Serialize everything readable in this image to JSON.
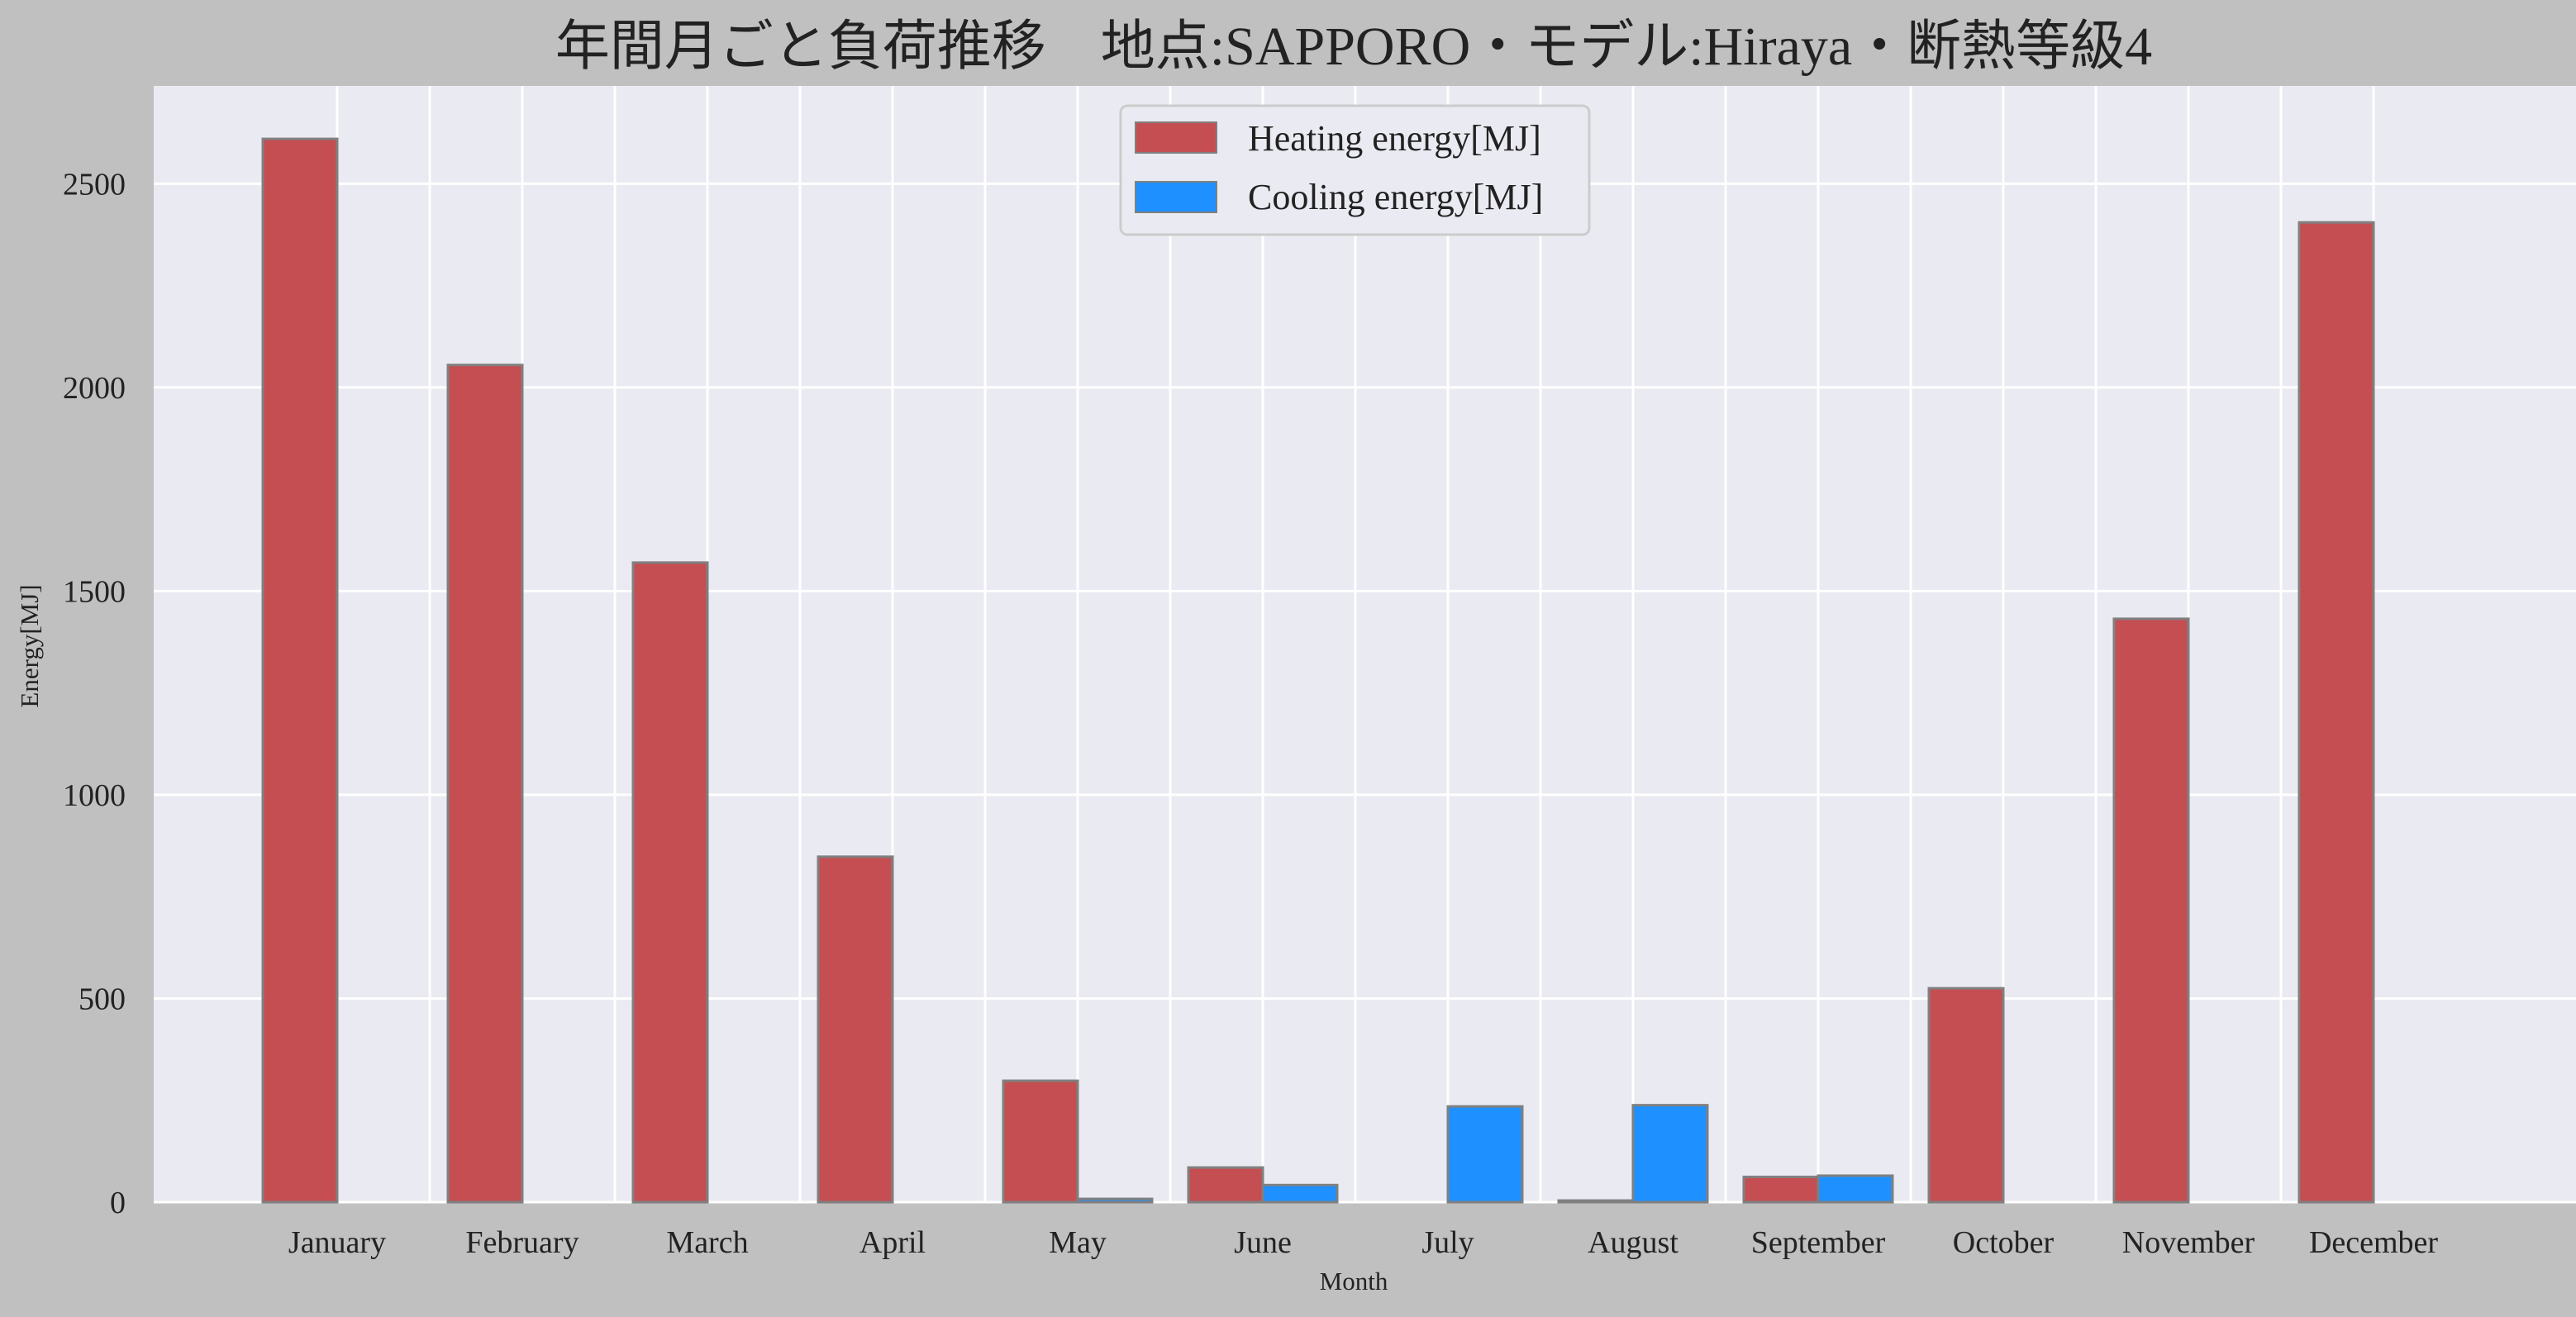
{
  "chart_data": {
    "type": "bar",
    "title": "年間月ごと負荷推移　地点:SAPPORO・モデル:Hiraya・断熱等級4",
    "xlabel": "Month",
    "ylabel": "Energy[MJ]",
    "categories": [
      "January",
      "February",
      "March",
      "April",
      "May",
      "June",
      "July",
      "August",
      "September",
      "October",
      "November",
      "December"
    ],
    "series": [
      {
        "name": "Heating energy[MJ]",
        "color": "#c44e52",
        "values": [
          2610,
          2055,
          1570,
          848,
          298,
          85,
          0,
          4,
          62,
          525,
          1432,
          2405
        ]
      },
      {
        "name": "Cooling energy[MJ]",
        "color": "#1e90ff",
        "values": [
          0,
          0,
          0,
          0,
          8,
          42,
          235,
          238,
          65,
          0,
          0,
          0
        ]
      }
    ],
    "yticks": [
      0,
      500,
      1000,
      1500,
      2000,
      2500
    ],
    "ylim": [
      0,
      2740
    ],
    "grid": true,
    "legend_position": "top-center",
    "colors": {
      "plot_background": "#eaeaf2",
      "figure_background": "#c0c0c0",
      "grid": "#ffffff",
      "bar_edge": "#808080"
    }
  }
}
